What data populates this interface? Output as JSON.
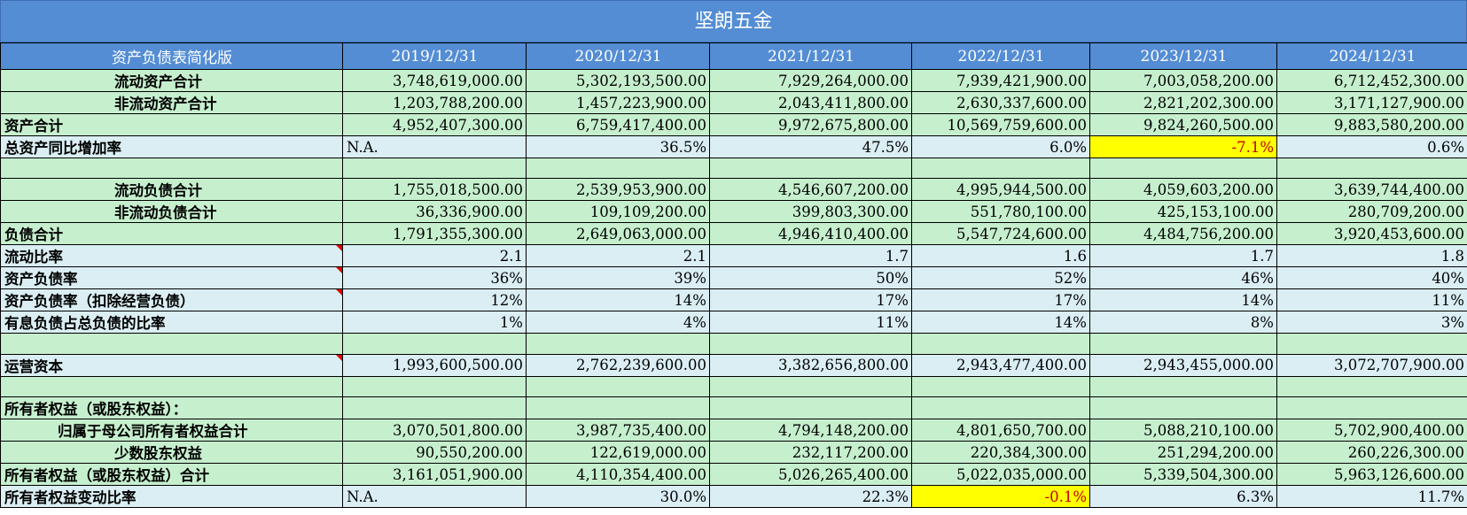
{
  "title": "坚朗五金",
  "header": {
    "label": "资产负债表简化版",
    "years": [
      "2019/12/31",
      "2020/12/31",
      "2021/12/31",
      "2022/12/31",
      "2023/12/31",
      "2024/12/31"
    ]
  },
  "rows": [
    {
      "label": "流动资产合计",
      "values": [
        "3,748,619,000.00",
        "5,302,193,500.00",
        "7,929,264,000.00",
        "7,939,421,900.00",
        "7,003,058,200.00",
        "6,712,452,300.00"
      ]
    },
    {
      "label": "非流动资产合计",
      "values": [
        "1,203,788,200.00",
        "1,457,223,900.00",
        "2,043,411,800.00",
        "2,630,337,600.00",
        "2,821,202,300.00",
        "3,171,127,900.00"
      ]
    },
    {
      "label": "资产合计",
      "values": [
        "4,952,407,300.00",
        "6,759,417,400.00",
        "9,972,675,800.00",
        "10,569,759,600.00",
        "9,824,260,500.00",
        "9,883,580,200.00"
      ]
    },
    {
      "label": "总资产同比增加率",
      "values": [
        "N.A.",
        "36.5%",
        "47.5%",
        "6.0%",
        "-7.1%",
        "0.6%"
      ]
    },
    {
      "label": "",
      "values": [
        "",
        "",
        "",
        "",
        "",
        ""
      ]
    },
    {
      "label": "流动负债合计",
      "values": [
        "1,755,018,500.00",
        "2,539,953,900.00",
        "4,546,607,200.00",
        "4,995,944,500.00",
        "4,059,603,200.00",
        "3,639,744,400.00"
      ]
    },
    {
      "label": "非流动负债合计",
      "values": [
        "36,336,900.00",
        "109,109,200.00",
        "399,803,300.00",
        "551,780,100.00",
        "425,153,100.00",
        "280,709,200.00"
      ]
    },
    {
      "label": "负债合计",
      "values": [
        "1,791,355,300.00",
        "2,649,063,000.00",
        "4,946,410,400.00",
        "5,547,724,600.00",
        "4,484,756,200.00",
        "3,920,453,600.00"
      ]
    },
    {
      "label": "流动比率",
      "values": [
        "2.1",
        "2.1",
        "1.7",
        "1.6",
        "1.7",
        "1.8"
      ]
    },
    {
      "label": "资产负债率",
      "values": [
        "36%",
        "39%",
        "50%",
        "52%",
        "46%",
        "40%"
      ]
    },
    {
      "label": "资产负债率（扣除经营负债）",
      "values": [
        "12%",
        "14%",
        "17%",
        "17%",
        "14%",
        "11%"
      ]
    },
    {
      "label": "有息负债占总负债的比率",
      "values": [
        "1%",
        "4%",
        "11%",
        "14%",
        "8%",
        "3%"
      ]
    },
    {
      "label": "",
      "values": [
        "",
        "",
        "",
        "",
        "",
        ""
      ]
    },
    {
      "label": "运营资本",
      "values": [
        "1,993,600,500.00",
        "2,762,239,600.00",
        "3,382,656,800.00",
        "2,943,477,400.00",
        "2,943,455,000.00",
        "3,072,707,900.00"
      ]
    },
    {
      "label": "",
      "values": [
        "",
        "",
        "",
        "",
        "",
        ""
      ]
    },
    {
      "label": "所有者权益（或股东权益）：",
      "values": [
        "",
        "",
        "",
        "",
        "",
        ""
      ]
    },
    {
      "label": "归属于母公司所有者权益合计",
      "values": [
        "3,070,501,800.00",
        "3,987,735,400.00",
        "4,794,148,200.00",
        "4,801,650,700.00",
        "5,088,210,100.00",
        "5,702,900,400.00"
      ]
    },
    {
      "label": "少数股东权益",
      "values": [
        "90,550,200.00",
        "122,619,000.00",
        "232,117,200.00",
        "220,384,300.00",
        "251,294,200.00",
        "260,226,300.00"
      ]
    },
    {
      "label": "所有者权益（或股东权益）合计",
      "values": [
        "3,161,051,900.00",
        "4,110,354,400.00",
        "5,026,265,400.00",
        "5,022,035,000.00",
        "5,339,504,300.00",
        "5,963,126,600.00"
      ]
    },
    {
      "label": "所有者权益变动比率",
      "values": [
        "N.A.",
        "30.0%",
        "22.3%",
        "-0.1%",
        "6.3%",
        "11.7%"
      ]
    }
  ],
  "colors": {
    "header": "#548dd4",
    "green": "#c6efce",
    "blue": "#daeef3",
    "highlight": "#ffff00",
    "negative": "#c00000"
  }
}
